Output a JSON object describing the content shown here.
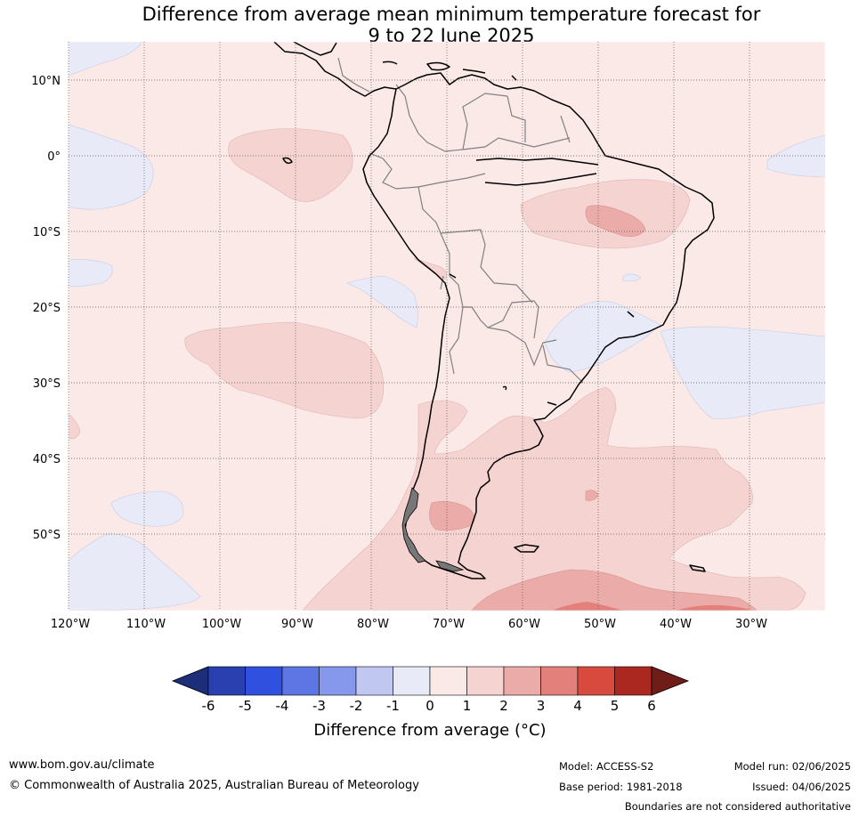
{
  "title": {
    "line1": "Difference from average mean minimum temperature forecast for",
    "line2": "9 to 22 June 2025"
  },
  "map": {
    "region": "South America",
    "lat_labels": [
      "10°N",
      "0°",
      "10°S",
      "20°S",
      "30°S",
      "40°S",
      "50°S"
    ],
    "lon_labels": [
      "120°W",
      "110°W",
      "100°W",
      "90°W",
      "80°W",
      "70°W",
      "60°W",
      "50°W",
      "40°W",
      "30°W"
    ],
    "gridlines": "dotted",
    "colors": {
      "ocean_land_base": "#fbe9e8",
      "anomaly_0_1": "#fbe9e8",
      "anomaly_1_2": "#f4d3d1",
      "anomaly_2_3": "#ebaba8",
      "anomaly_3_4": "#e3807b",
      "anomaly_m1_0": "#e8eaf8",
      "coastline": "#000000",
      "borders": "#808080"
    }
  },
  "colorbar": {
    "ticks": [
      "-6",
      "-5",
      "-4",
      "-3",
      "-2",
      "-1",
      "0",
      "1",
      "2",
      "3",
      "4",
      "5",
      "6"
    ],
    "colors": [
      "#1c2e7a",
      "#2a3fb0",
      "#3050e0",
      "#5e75e4",
      "#8698ec",
      "#c0c8f2",
      "#e8eaf8",
      "#fbe9e8",
      "#f4d3d1",
      "#ebaba8",
      "#e3807b",
      "#d94a3e",
      "#aa2820",
      "#701c18"
    ],
    "label": "Difference from average (°C)"
  },
  "footer": {
    "url": "www.bom.gov.au/climate",
    "copyright": "© Commonwealth of Australia 2025, Australian Bureau of Meteorology",
    "model": "Model: ACCESS-S2",
    "base_period": "Base period: 1981-2018",
    "model_run": "Model run: 02/06/2025",
    "issued": "Issued: 04/06/2025",
    "disclaimer": "Boundaries are not considered authoritative"
  }
}
